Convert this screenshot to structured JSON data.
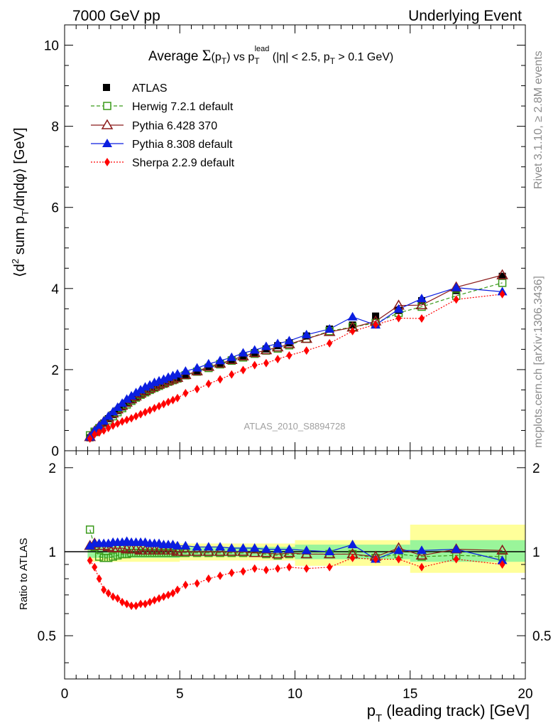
{
  "header": {
    "left": "7000 GeV pp",
    "right": "Underlying Event"
  },
  "side_labels": {
    "rivet": "Rivet 3.1.10, ≥ 2.8M events",
    "mcplots": "mcplots.cern.ch [arXiv:1306.3436]"
  },
  "watermark": "ATLAS_2010_S8894728",
  "title": {
    "prefix": "Average ",
    "sigma": "Σ",
    "pt1_open": "(p",
    "pt1_sub": "T",
    "pt1_close": ")",
    "vs": " vs p",
    "pt2_sub": "T",
    "pt2_sup": "lead",
    "cuts_open": " (|η| < 2.5, p",
    "cuts_sub": "T",
    "cuts_close": " > 0.1 GeV)"
  },
  "ylabel_top": {
    "a": "⟨d",
    "a_sup": "2",
    "b": " sum p",
    "b_sub": "T",
    "c": "/dηdφ⟩ [GeV]"
  },
  "ylabel_bottom": "Ratio to ATLAS",
  "xlabel": {
    "a": "p",
    "a_sub": "T",
    "b": " (leading track) [GeV]"
  },
  "colors": {
    "atlas": "#000000",
    "herwig": "#3a9a1a",
    "pythia6": "#8b1a1a",
    "pythia8": "#0b1ee0",
    "sherpa": "#ff0000",
    "band_yellow": "#ffff9a",
    "band_green": "#9af59a"
  },
  "legend": [
    "ATLAS",
    "Herwig 7.2.1 default",
    "Pythia 6.428 370",
    "Pythia 8.308 default",
    "Sherpa 2.2.9 default"
  ],
  "chart_data": [
    {
      "type": "scatter",
      "title": "Average Σ(pT) vs pT lead (|η| < 2.5, pT > 0.1 GeV)",
      "xlabel": "pT (leading track) [GeV]",
      "ylabel": "⟨d2 sum pT/dηdφ⟩ [GeV]",
      "xlim": [
        0,
        20
      ],
      "ylim": [
        0,
        10.5
      ],
      "x_ticks": [
        "0",
        "5",
        "10",
        "15",
        "20"
      ],
      "y_ticks": [
        "0",
        "2",
        "4",
        "6",
        "8",
        "10"
      ],
      "x": [
        1.1,
        1.3,
        1.5,
        1.7,
        1.9,
        2.1,
        2.3,
        2.5,
        2.7,
        2.9,
        3.1,
        3.3,
        3.5,
        3.7,
        3.9,
        4.1,
        4.3,
        4.5,
        4.7,
        4.9,
        5.25,
        5.75,
        6.25,
        6.75,
        7.25,
        7.75,
        8.25,
        8.75,
        9.25,
        9.75,
        10.5,
        11.5,
        12.5,
        13.5,
        14.5,
        15.5,
        17,
        19
      ],
      "series": [
        {
          "name": "ATLAS",
          "values": [
            0.32,
            0.45,
            0.57,
            0.68,
            0.79,
            0.89,
            0.99,
            1.08,
            1.17,
            1.25,
            1.32,
            1.39,
            1.45,
            1.51,
            1.56,
            1.61,
            1.66,
            1.71,
            1.75,
            1.79,
            1.87,
            1.96,
            2.06,
            2.15,
            2.24,
            2.33,
            2.42,
            2.51,
            2.59,
            2.66,
            2.83,
            3.0,
            3.1,
            3.32,
            3.46,
            3.7,
            3.95,
            4.3
          ]
        },
        {
          "name": "Herwig 7.2.1 default",
          "values": [
            0.38,
            0.47,
            0.55,
            0.65,
            0.75,
            0.85,
            0.95,
            1.05,
            1.14,
            1.23,
            1.31,
            1.38,
            1.44,
            1.5,
            1.55,
            1.6,
            1.65,
            1.7,
            1.74,
            1.78,
            1.86,
            1.95,
            2.04,
            2.13,
            2.22,
            2.3,
            2.39,
            2.47,
            2.52,
            2.6,
            2.76,
            2.95,
            3.05,
            3.15,
            3.4,
            3.55,
            3.82,
            4.14
          ]
        },
        {
          "name": "Pythia 6.428 370",
          "values": [
            0.34,
            0.48,
            0.6,
            0.71,
            0.82,
            0.92,
            1.02,
            1.11,
            1.19,
            1.27,
            1.34,
            1.41,
            1.47,
            1.53,
            1.58,
            1.63,
            1.67,
            1.72,
            1.76,
            1.8,
            1.87,
            1.96,
            2.07,
            2.15,
            2.24,
            2.33,
            2.41,
            2.48,
            2.55,
            2.63,
            2.76,
            2.93,
            3.04,
            3.19,
            3.58,
            3.59,
            4.03,
            4.33
          ]
        },
        {
          "name": "Pythia 8.308 default",
          "values": [
            0.34,
            0.49,
            0.61,
            0.73,
            0.85,
            0.96,
            1.07,
            1.17,
            1.27,
            1.35,
            1.43,
            1.5,
            1.57,
            1.62,
            1.68,
            1.72,
            1.76,
            1.81,
            1.85,
            1.89,
            1.96,
            2.04,
            2.14,
            2.22,
            2.3,
            2.41,
            2.48,
            2.57,
            2.64,
            2.71,
            2.86,
            3.0,
            3.3,
            3.1,
            3.49,
            3.75,
            4.02,
            3.92
          ]
        },
        {
          "name": "Sherpa 2.2.9 default",
          "values": [
            0.3,
            0.4,
            0.45,
            0.5,
            0.56,
            0.62,
            0.67,
            0.72,
            0.76,
            0.8,
            0.85,
            0.9,
            0.95,
            1.0,
            1.05,
            1.1,
            1.15,
            1.2,
            1.25,
            1.3,
            1.42,
            1.52,
            1.65,
            1.76,
            1.88,
            1.99,
            2.11,
            2.16,
            2.26,
            2.35,
            2.47,
            2.65,
            2.95,
            3.11,
            3.27,
            3.26,
            3.73,
            3.86
          ]
        }
      ]
    },
    {
      "type": "scatter",
      "ylabel": "Ratio to ATLAS",
      "xlabel": "pT (leading track) [GeV]",
      "xlim": [
        0,
        20
      ],
      "ylim": [
        0.35,
        2.3
      ],
      "x_ticks": [
        "0",
        "5",
        "10",
        "15",
        "20"
      ],
      "y_ticks": [
        "0.5",
        "1",
        "2"
      ],
      "x": [
        1.1,
        1.3,
        1.5,
        1.7,
        1.9,
        2.1,
        2.3,
        2.5,
        2.7,
        2.9,
        3.1,
        3.3,
        3.5,
        3.7,
        3.9,
        4.1,
        4.3,
        4.5,
        4.7,
        4.9,
        5.25,
        5.75,
        6.25,
        6.75,
        7.25,
        7.75,
        8.25,
        8.75,
        9.25,
        9.75,
        10.5,
        11.5,
        12.5,
        13.5,
        14.5,
        15.5,
        17,
        19
      ],
      "series": [
        {
          "name": "Herwig 7.2.1 default",
          "values": [
            1.2,
            1.04,
            0.96,
            0.95,
            0.95,
            0.96,
            0.97,
            0.98,
            0.98,
            0.99,
            0.99,
            0.99,
            0.99,
            0.99,
            0.99,
            0.99,
            0.99,
            0.99,
            0.99,
            0.99,
            0.99,
            0.99,
            0.99,
            0.99,
            0.99,
            0.99,
            0.99,
            0.98,
            0.97,
            0.98,
            0.98,
            0.98,
            0.98,
            0.95,
            0.98,
            0.96,
            0.97,
            0.96
          ]
        },
        {
          "name": "Pythia 6.428 370",
          "values": [
            1.05,
            1.07,
            1.05,
            1.05,
            1.04,
            1.03,
            1.03,
            1.03,
            1.02,
            1.02,
            1.02,
            1.01,
            1.01,
            1.01,
            1.01,
            1.01,
            1.01,
            1.01,
            1.01,
            1.0,
            1.0,
            1.0,
            1.0,
            1.0,
            1.0,
            1.0,
            0.99,
            0.99,
            0.98,
            0.99,
            0.98,
            0.98,
            0.98,
            0.96,
            1.03,
            0.97,
            1.02,
            1.01
          ]
        },
        {
          "name": "Pythia 8.308 default",
          "values": [
            1.05,
            1.07,
            1.07,
            1.07,
            1.07,
            1.08,
            1.08,
            1.08,
            1.09,
            1.08,
            1.08,
            1.08,
            1.08,
            1.07,
            1.07,
            1.07,
            1.06,
            1.06,
            1.06,
            1.05,
            1.05,
            1.04,
            1.04,
            1.04,
            1.03,
            1.03,
            1.03,
            1.02,
            1.02,
            1.02,
            1.01,
            1.0,
            1.06,
            0.94,
            1.01,
            1.01,
            1.02,
            0.93
          ]
        },
        {
          "name": "Sherpa 2.2.9 default",
          "values": [
            0.93,
            0.88,
            0.8,
            0.73,
            0.71,
            0.69,
            0.68,
            0.66,
            0.65,
            0.64,
            0.64,
            0.65,
            0.65,
            0.66,
            0.67,
            0.68,
            0.69,
            0.7,
            0.71,
            0.73,
            0.76,
            0.77,
            0.8,
            0.82,
            0.84,
            0.85,
            0.87,
            0.86,
            0.87,
            0.88,
            0.87,
            0.88,
            0.95,
            0.94,
            0.94,
            0.88,
            0.94,
            0.9
          ]
        }
      ],
      "bands": {
        "yellow": [
          [
            1,
            5,
            0.92,
            1.08
          ],
          [
            5,
            10,
            0.93,
            1.07
          ],
          [
            10,
            15,
            0.89,
            1.1
          ],
          [
            15,
            20,
            0.84,
            1.25
          ]
        ],
        "green": [
          [
            1,
            5,
            0.95,
            1.05
          ],
          [
            5,
            10,
            0.96,
            1.04
          ],
          [
            10,
            15,
            0.94,
            1.06
          ],
          [
            15,
            20,
            0.92,
            1.1
          ]
        ]
      }
    }
  ]
}
